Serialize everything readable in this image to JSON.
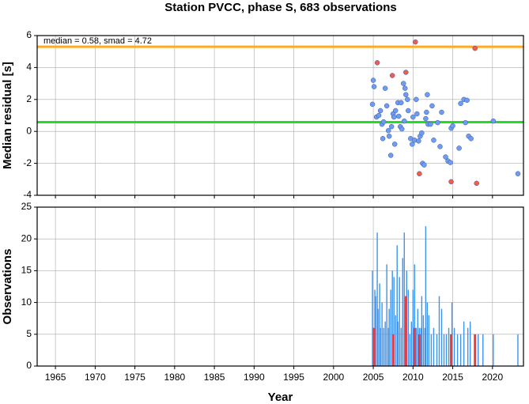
{
  "chart_data": [
    {
      "type": "scatter",
      "title": "Station PVCC, phase S, 683 observations",
      "ylabel": "Median residual [s]",
      "annotation": "median = 0.58, smad = 4.72",
      "xlim": [
        1962.7,
        2023.9
      ],
      "xticks": [
        1965,
        1970,
        1975,
        1980,
        1985,
        1990,
        1995,
        2000,
        2005,
        2010,
        2015,
        2020
      ],
      "ylim": [
        -4,
        6
      ],
      "yticks": [
        -4,
        -2,
        0,
        2,
        4,
        6
      ],
      "grid": true,
      "hlines": [
        {
          "value": 0.58,
          "color": "#22dd22"
        },
        {
          "value": 5.3,
          "color": "#ffaa22"
        }
      ],
      "series": [
        {
          "color": "#6f9bf0",
          "x": [
            2005.0,
            2005.1,
            2004.9,
            2005.4,
            2005.7,
            2005.9,
            2006.1,
            2006.2,
            2006.3,
            2006.5,
            2006.7,
            2006.9,
            2007.0,
            2007.2,
            2007.3,
            2007.5,
            2007.6,
            2007.7,
            2007.8,
            2008.1,
            2008.2,
            2008.4,
            2008.5,
            2008.6,
            2008.8,
            2008.9,
            2009.0,
            2009.1,
            2009.3,
            2009.4,
            2009.7,
            2009.9,
            2010.0,
            2010.2,
            2010.4,
            2010.5,
            2010.7,
            2010.9,
            2011.1,
            2011.2,
            2011.4,
            2011.6,
            2011.7,
            2011.8,
            2011.9,
            2012.2,
            2012.4,
            2012.6,
            2013.1,
            2013.4,
            2013.6,
            2014.1,
            2014.4,
            2014.7,
            2014.8,
            2015.0,
            2015.8,
            2016.0,
            2016.4,
            2016.6,
            2016.8,
            2017.0,
            2017.3,
            2020.1,
            2023.2
          ],
          "values": [
            3.2,
            2.8,
            1.7,
            0.9,
            1.0,
            1.3,
            0.45,
            -0.45,
            0.6,
            2.7,
            1.6,
            0.05,
            -0.3,
            -1.5,
            0.3,
            1.1,
            0.9,
            -0.8,
            1.3,
            1.8,
            0.95,
            0.3,
            1.8,
            0.15,
            3.0,
            0.65,
            2.7,
            2.3,
            2.0,
            1.3,
            -0.45,
            -0.8,
            0.9,
            -0.55,
            2.0,
            1.1,
            -0.6,
            -0.3,
            -0.1,
            -2.0,
            -2.1,
            0.8,
            1.2,
            2.3,
            0.45,
            0.45,
            1.6,
            -0.55,
            0.55,
            -0.95,
            1.2,
            -1.6,
            -1.85,
            -1.95,
            0.2,
            0.35,
            -1.05,
            1.75,
            2.0,
            0.55,
            1.95,
            -0.3,
            -0.45,
            0.65,
            -2.65
          ]
        },
        {
          "color": "#f25c4a",
          "x": [
            2005.5,
            2007.4,
            2009.1,
            2010.3,
            2010.8,
            2014.8,
            2017.8,
            2018.0
          ],
          "values": [
            4.3,
            3.5,
            3.7,
            5.6,
            -2.65,
            -3.15,
            5.2,
            -3.25
          ]
        }
      ]
    },
    {
      "type": "histogram",
      "xlabel": "Year",
      "ylabel": "Observations",
      "xlim": [
        1962.7,
        2023.9
      ],
      "xticks": [
        1965,
        1970,
        1975,
        1980,
        1985,
        1990,
        1995,
        2000,
        2005,
        2010,
        2015,
        2020
      ],
      "ylim": [
        0,
        25
      ],
      "yticks": [
        0,
        5,
        10,
        15,
        20,
        25
      ],
      "grid": true,
      "series": [
        {
          "color": "#3d94ee",
          "x": [
            2004.9,
            2005.0,
            2005.2,
            2005.3,
            2005.5,
            2005.6,
            2005.8,
            2005.9,
            2006.1,
            2006.3,
            2006.5,
            2006.7,
            2006.9,
            2007.0,
            2007.2,
            2007.4,
            2007.6,
            2007.8,
            2008.0,
            2008.1,
            2008.3,
            2008.5,
            2008.7,
            2008.9,
            2009.0,
            2009.2,
            2009.4,
            2009.6,
            2009.8,
            2010.0,
            2010.2,
            2010.4,
            2010.6,
            2010.8,
            2011.0,
            2011.1,
            2011.3,
            2011.5,
            2011.6,
            2011.8,
            2012.0,
            2012.3,
            2012.6,
            2013.0,
            2013.3,
            2013.6,
            2013.9,
            2014.2,
            2014.5,
            2014.9,
            2015.2,
            2015.6,
            2016.0,
            2016.4,
            2016.9,
            2017.2,
            2018.2,
            2018.8,
            2020.1,
            2023.2
          ],
          "values": [
            15,
            6,
            12,
            11,
            21,
            9,
            13,
            6,
            10,
            6,
            7,
            16,
            6,
            9,
            12,
            15,
            14,
            8,
            19,
            7,
            14,
            6,
            17,
            21,
            10,
            15,
            12,
            5,
            7,
            12,
            16,
            6,
            9,
            6,
            6,
            11,
            8,
            6,
            22,
            10,
            8,
            5,
            6,
            5,
            11,
            9,
            5,
            5,
            6,
            10,
            6,
            5,
            5,
            7,
            6,
            7,
            5,
            5,
            5,
            5
          ]
        },
        {
          "color": "#f03a3a",
          "x": [
            2005.1,
            2007.5,
            2009.1,
            2010.2,
            2010.8,
            2014.8,
            2017.8
          ],
          "values": [
            6,
            5,
            11,
            6,
            5,
            5,
            5
          ]
        }
      ]
    }
  ]
}
